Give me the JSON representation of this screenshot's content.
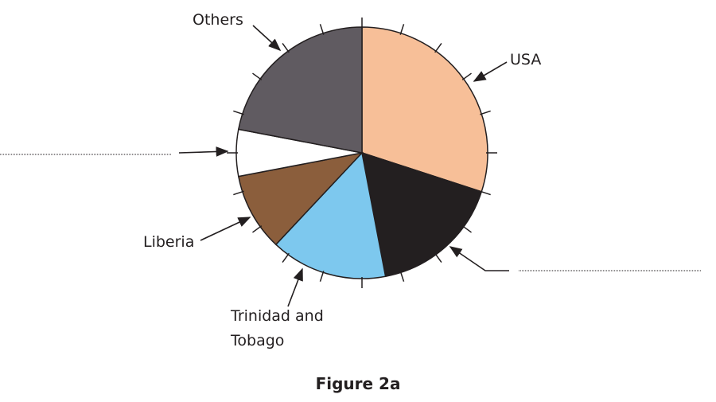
{
  "chart_data": {
    "type": "pie",
    "title": "Figure 2a",
    "categories": [
      "USA",
      null,
      "Trinidad and Tobago",
      "Liberia",
      null,
      "Others"
    ],
    "values": [
      30,
      17,
      15,
      10,
      6,
      22
    ],
    "colors": [
      "#f7bf98",
      "#231f20",
      "#7dc8ee",
      "#8b5e3c",
      "#ffffff",
      "#605b61"
    ]
  }
}
